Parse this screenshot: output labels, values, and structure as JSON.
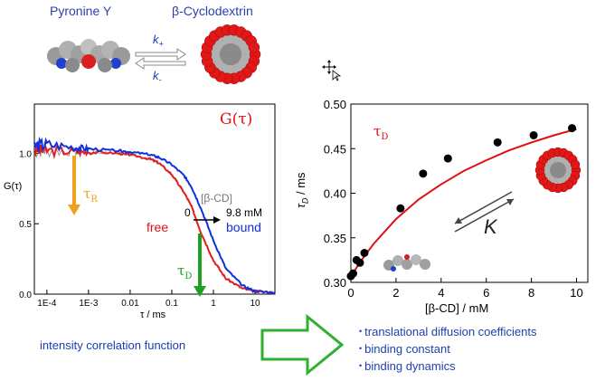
{
  "top": {
    "molecule_a": "Pyronine Y",
    "molecule_b": "β-Cyclodextrin",
    "k_plus": "k",
    "k_plus_sub": "+",
    "k_minus": "k",
    "k_minus_sub": "-"
  },
  "left_chart": {
    "title": "G(τ)",
    "ylabel": "G(τ)",
    "xlabel": "τ / ms",
    "xticks": [
      "1E-4",
      "1E-3",
      "0.01",
      "0.1",
      "1",
      "10"
    ],
    "yticks": [
      "0.0",
      "0.5",
      "1.0"
    ],
    "tau_r": "τ",
    "tau_r_sub": "R",
    "tau_d": "τ",
    "tau_d_sub": "D",
    "conc_title": "[β-CD]",
    "conc_from": "0",
    "conc_to": "9.8 mM",
    "free_label": "free",
    "bound_label": "bound",
    "caption": "intensity correlation function",
    "colors": {
      "free": "#e02020",
      "bound": "#1030e0",
      "mid": "#888888",
      "tau_r_arrow": "#f0a020",
      "tau_d_arrow": "#20a020"
    }
  },
  "chart_data": [
    {
      "type": "line",
      "title": "G(τ)",
      "xlabel": "τ / ms",
      "ylabel": "G(τ)",
      "xscale": "log",
      "xlim": [
        5e-05,
        30
      ],
      "ylim": [
        0,
        1.35
      ],
      "series": [
        {
          "name": "free",
          "color": "#e02020",
          "x": [
            5e-05,
            0.0001,
            0.0005,
            0.001,
            0.005,
            0.01,
            0.03,
            0.05,
            0.1,
            0.2,
            0.3,
            0.5,
            1,
            2,
            5,
            10,
            30
          ],
          "y": [
            1.02,
            1.02,
            1.01,
            1.01,
            1.0,
            0.99,
            0.96,
            0.93,
            0.85,
            0.72,
            0.62,
            0.44,
            0.24,
            0.11,
            0.04,
            0.02,
            0.01
          ]
        },
        {
          "name": "bound",
          "color": "#1030e0",
          "x": [
            5e-05,
            0.0001,
            0.0005,
            0.001,
            0.005,
            0.01,
            0.03,
            0.05,
            0.1,
            0.2,
            0.3,
            0.5,
            1,
            2,
            5,
            10,
            30
          ],
          "y": [
            1.05,
            1.06,
            1.04,
            1.03,
            1.02,
            1.01,
            0.99,
            0.97,
            0.92,
            0.84,
            0.76,
            0.61,
            0.38,
            0.18,
            0.06,
            0.02,
            0.01
          ]
        }
      ]
    },
    {
      "type": "scatter",
      "xlabel": "[β-CD] / mM",
      "ylabel": "τD / ms",
      "xlim": [
        0,
        10.5
      ],
      "ylim": [
        0.3,
        0.5
      ],
      "xticks": [
        0,
        2,
        4,
        6,
        8,
        10
      ],
      "yticks": [
        0.3,
        0.35,
        0.4,
        0.45,
        0.5
      ],
      "series": [
        {
          "name": "data",
          "x": [
            0.0,
            0.1,
            0.25,
            0.4,
            0.6,
            2.2,
            3.2,
            4.3,
            6.5,
            8.1,
            9.8
          ],
          "y": [
            0.307,
            0.31,
            0.325,
            0.322,
            0.333,
            0.383,
            0.422,
            0.439,
            0.457,
            0.465,
            0.473
          ]
        },
        {
          "name": "fit",
          "x": [
            0,
            0.5,
            1,
            2,
            3,
            4,
            5,
            6,
            7,
            8,
            9,
            10
          ],
          "y": [
            0.307,
            0.326,
            0.343,
            0.371,
            0.393,
            0.41,
            0.425,
            0.437,
            0.448,
            0.457,
            0.465,
            0.472
          ]
        }
      ]
    }
  ],
  "right_chart": {
    "label": "τ",
    "label_sub": "D",
    "ylabel": "τ",
    "ylabel_sub": "D",
    "ylabel_unit": " / ms",
    "xlabel": "[β-CD] / mM",
    "k_label": "K",
    "colors": {
      "fit": "#e01010",
      "points": "#000000"
    }
  },
  "bullets": [
    "translational diffusion coefficients",
    "binding constant",
    "binding dynamics"
  ]
}
